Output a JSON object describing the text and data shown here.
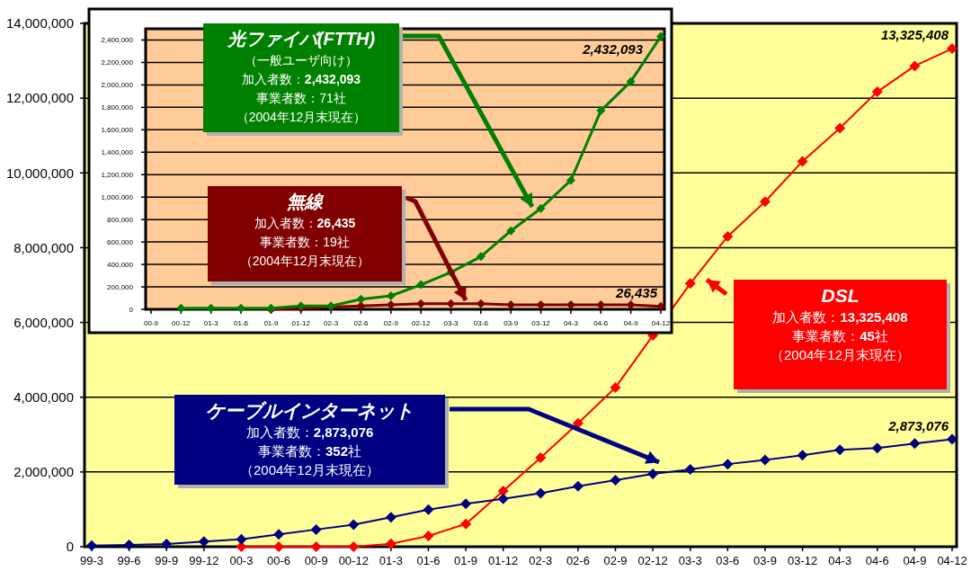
{
  "chart_data": [
    {
      "type": "line",
      "categories": [
        "99-3",
        "99-6",
        "99-9",
        "99-12",
        "00-3",
        "00-6",
        "00-9",
        "00-12",
        "01-3",
        "01-6",
        "01-9",
        "01-12",
        "02-3",
        "02-6",
        "02-9",
        "02-12",
        "03-3",
        "03-6",
        "03-9",
        "03-12",
        "04-3",
        "04-6",
        "04-9",
        "04-12"
      ],
      "series": [
        {
          "color": "#000080",
          "values": [
            30000,
            50000,
            70000,
            140000,
            200000,
            330000,
            460000,
            590000,
            790000,
            990000,
            1150000,
            1280000,
            1430000,
            1620000,
            1780000,
            1950000,
            2070000,
            2210000,
            2320000,
            2450000,
            2590000,
            2640000,
            2760000,
            2873076
          ],
          "value_labels": [
            null,
            null,
            null,
            null,
            null,
            null,
            null,
            null,
            null,
            null,
            null,
            null,
            null,
            null,
            null,
            null,
            null,
            null,
            null,
            null,
            null,
            null,
            null,
            "2,873,076"
          ]
        },
        {
          "color": "#ff0000",
          "values": [
            null,
            null,
            null,
            null,
            0,
            0,
            0,
            0,
            80000,
            290000,
            610000,
            1490000,
            2380000,
            3300000,
            4260000,
            5650000,
            7040000,
            8300000,
            9230000,
            10310000,
            11200000,
            12170000,
            12860000,
            13325408
          ],
          "value_labels": [
            null,
            null,
            null,
            null,
            null,
            null,
            null,
            null,
            null,
            null,
            null,
            null,
            null,
            null,
            null,
            null,
            null,
            null,
            null,
            null,
            null,
            null,
            null,
            "13,325,408"
          ]
        }
      ],
      "ylim": [
        0,
        14000000
      ],
      "yticks": [
        {
          "value": 0,
          "label": "0"
        },
        {
          "value": 2000000,
          "label": "2,000,000"
        },
        {
          "value": 4000000,
          "label": "4,000,000"
        },
        {
          "value": 6000000,
          "label": "6,000,000"
        },
        {
          "value": 8000000,
          "label": "8,000,000"
        },
        {
          "value": 10000000,
          "label": "10,000,000"
        },
        {
          "value": 12000000,
          "label": "12,000,000"
        },
        {
          "value": 14000000,
          "label": "14,000,000"
        }
      ],
      "grid": "y",
      "marker": "diamond",
      "annotations": [
        "ケーブルインターネット",
        "加入者数：**2,873,076**",
        "事業者数：**352**社",
        "（2004年12月末現在）",
        "DSL",
        "加入者数：**13,325,408**",
        "事業者数：**45**社",
        "（2004年12月末現在）"
      ]
    },
    {
      "type": "line",
      "categories": [
        "00-9",
        "00-12",
        "01-3",
        "01-6",
        "01-9",
        "01-12",
        "02-3",
        "02-6",
        "02-9",
        "02-12",
        "03-3",
        "03-6",
        "03-9",
        "03-12",
        "04-3",
        "04-6",
        "04-9",
        "04-12"
      ],
      "series": [
        {
          "color": "#008000",
          "values": [
            null,
            10000,
            10000,
            10000,
            10000,
            30000,
            30000,
            90000,
            120000,
            220000,
            330000,
            470000,
            700000,
            900000,
            1150000,
            1770000,
            2030000,
            2432093
          ],
          "value_labels": [
            null,
            null,
            null,
            null,
            null,
            null,
            null,
            null,
            null,
            null,
            null,
            null,
            null,
            null,
            null,
            null,
            null,
            "2,432,093"
          ]
        },
        {
          "color": "#800000",
          "values": [
            null,
            null,
            null,
            null,
            0,
            10000,
            20000,
            30000,
            40000,
            50000,
            50000,
            50000,
            40000,
            40000,
            40000,
            40000,
            40000,
            26435
          ],
          "value_labels": [
            null,
            null,
            null,
            null,
            null,
            null,
            null,
            null,
            null,
            null,
            null,
            null,
            null,
            null,
            null,
            null,
            null,
            "26,435"
          ]
        }
      ],
      "ylim": [
        0,
        2500000
      ],
      "yticks": [
        {
          "value": 0,
          "label": "0"
        },
        {
          "value": 200000,
          "label": "200,000"
        },
        {
          "value": 400000,
          "label": "400,000"
        },
        {
          "value": 600000,
          "label": "600,000"
        },
        {
          "value": 800000,
          "label": "800,000"
        },
        {
          "value": 1000000,
          "label": "1,000,000"
        },
        {
          "value": 1200000,
          "label": "1,200,000"
        },
        {
          "value": 1400000,
          "label": "1,400,000"
        },
        {
          "value": 1600000,
          "label": "1,600,000"
        },
        {
          "value": 1800000,
          "label": "1,800,000"
        },
        {
          "value": 2000000,
          "label": "2,000,000"
        },
        {
          "value": 2200000,
          "label": "2,200,000"
        },
        {
          "value": 2400000,
          "label": "2,400,000"
        }
      ],
      "grid": "y",
      "marker": "diamond",
      "annotations": [
        "光ファイバ(FTTH)",
        "（一般ユーザ向け）",
        "加入者数：**2,432,093**",
        "事業者数：71社",
        "（2004年12月末現在）",
        "無線",
        "加入者数：**26,435**",
        "事業者数：19社",
        "（2004年12月末現在）"
      ]
    }
  ]
}
